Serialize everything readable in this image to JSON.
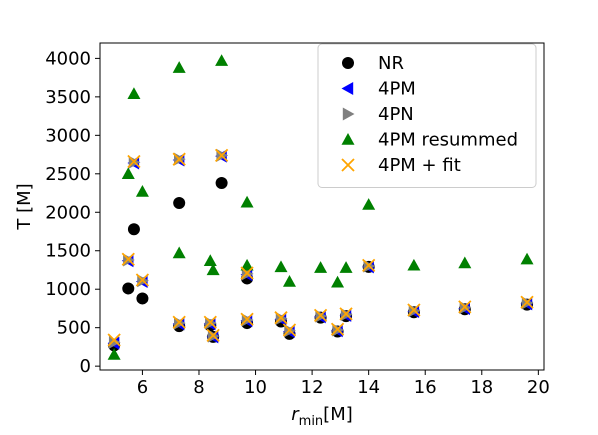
{
  "chart_data": {
    "type": "scatter",
    "title": "",
    "xlabel": "r",
    "xlabel_sub": "min",
    "xlabel_unit": "[M]",
    "ylabel": "T [M]",
    "xlim": [
      4.5,
      20.2
    ],
    "ylim": [
      -50,
      4200
    ],
    "xticks": [
      6,
      8,
      10,
      12,
      14,
      16,
      18,
      20
    ],
    "yticks": [
      0,
      500,
      1000,
      1500,
      2000,
      2500,
      3000,
      3500,
      4000
    ],
    "grid": false,
    "legend_position": "top-right",
    "series": [
      {
        "name": "NR",
        "marker": "circle",
        "color": "#000000",
        "points": [
          [
            5.0,
            270
          ],
          [
            5.5,
            1010
          ],
          [
            5.7,
            1780
          ],
          [
            6.0,
            880
          ],
          [
            7.3,
            2120
          ],
          [
            8.8,
            2380
          ],
          [
            7.3,
            520
          ],
          [
            8.4,
            530
          ],
          [
            8.5,
            380
          ],
          [
            9.7,
            560
          ],
          [
            9.7,
            1140
          ],
          [
            10.9,
            580
          ],
          [
            11.2,
            420
          ],
          [
            12.3,
            630
          ],
          [
            12.9,
            450
          ],
          [
            13.2,
            650
          ],
          [
            14.0,
            1290
          ],
          [
            15.6,
            700
          ],
          [
            17.4,
            740
          ],
          [
            19.6,
            800
          ]
        ]
      },
      {
        "name": "4PM",
        "marker": "triangle-left",
        "color": "#0000ff",
        "points": [
          [
            5.0,
            300
          ],
          [
            5.5,
            1370
          ],
          [
            5.7,
            2640
          ],
          [
            6.0,
            1100
          ],
          [
            7.3,
            2680
          ],
          [
            8.8,
            2730
          ],
          [
            7.3,
            550
          ],
          [
            8.4,
            550
          ],
          [
            8.5,
            380
          ],
          [
            9.7,
            590
          ],
          [
            9.7,
            1190
          ],
          [
            10.9,
            610
          ],
          [
            11.2,
            450
          ],
          [
            12.3,
            640
          ],
          [
            12.9,
            460
          ],
          [
            13.2,
            660
          ],
          [
            14.0,
            1290
          ],
          [
            15.6,
            710
          ],
          [
            17.4,
            750
          ],
          [
            19.6,
            810
          ]
        ]
      },
      {
        "name": "4PN",
        "marker": "triangle-right",
        "color": "#808080",
        "points": [
          [
            5.0,
            310
          ],
          [
            5.5,
            1380
          ],
          [
            5.7,
            2650
          ],
          [
            6.0,
            1110
          ],
          [
            7.3,
            2690
          ],
          [
            8.8,
            2740
          ],
          [
            7.3,
            560
          ],
          [
            8.4,
            560
          ],
          [
            8.5,
            390
          ],
          [
            9.7,
            600
          ],
          [
            9.7,
            1200
          ],
          [
            10.9,
            620
          ],
          [
            11.2,
            460
          ],
          [
            12.3,
            650
          ],
          [
            12.9,
            470
          ],
          [
            13.2,
            670
          ],
          [
            14.0,
            1300
          ],
          [
            15.6,
            720
          ],
          [
            17.4,
            760
          ],
          [
            19.6,
            820
          ]
        ]
      },
      {
        "name": "4PM resummed",
        "marker": "triangle-up",
        "color": "#008000",
        "points": [
          [
            5.0,
            150
          ],
          [
            5.5,
            2500
          ],
          [
            5.7,
            3540
          ],
          [
            6.0,
            2270
          ],
          [
            7.3,
            3880
          ],
          [
            8.8,
            3970
          ],
          [
            7.3,
            1470
          ],
          [
            8.4,
            1370
          ],
          [
            8.5,
            1250
          ],
          [
            9.7,
            1310
          ],
          [
            9.7,
            2130
          ],
          [
            10.9,
            1290
          ],
          [
            11.2,
            1100
          ],
          [
            12.3,
            1280
          ],
          [
            12.9,
            1090
          ],
          [
            13.2,
            1280
          ],
          [
            14.0,
            2100
          ],
          [
            15.6,
            1310
          ],
          [
            17.4,
            1340
          ],
          [
            19.6,
            1390
          ]
        ]
      },
      {
        "name": "4PM + fit",
        "marker": "x",
        "color": "#ffa500",
        "points": [
          [
            5.0,
            340
          ],
          [
            5.5,
            1390
          ],
          [
            5.7,
            2660
          ],
          [
            6.0,
            1120
          ],
          [
            7.3,
            2690
          ],
          [
            8.8,
            2740
          ],
          [
            7.3,
            570
          ],
          [
            8.4,
            570
          ],
          [
            8.5,
            400
          ],
          [
            9.7,
            610
          ],
          [
            9.7,
            1210
          ],
          [
            10.9,
            630
          ],
          [
            11.2,
            470
          ],
          [
            12.3,
            660
          ],
          [
            12.9,
            480
          ],
          [
            13.2,
            680
          ],
          [
            14.0,
            1310
          ],
          [
            15.6,
            730
          ],
          [
            17.4,
            770
          ],
          [
            19.6,
            830
          ]
        ]
      }
    ]
  }
}
